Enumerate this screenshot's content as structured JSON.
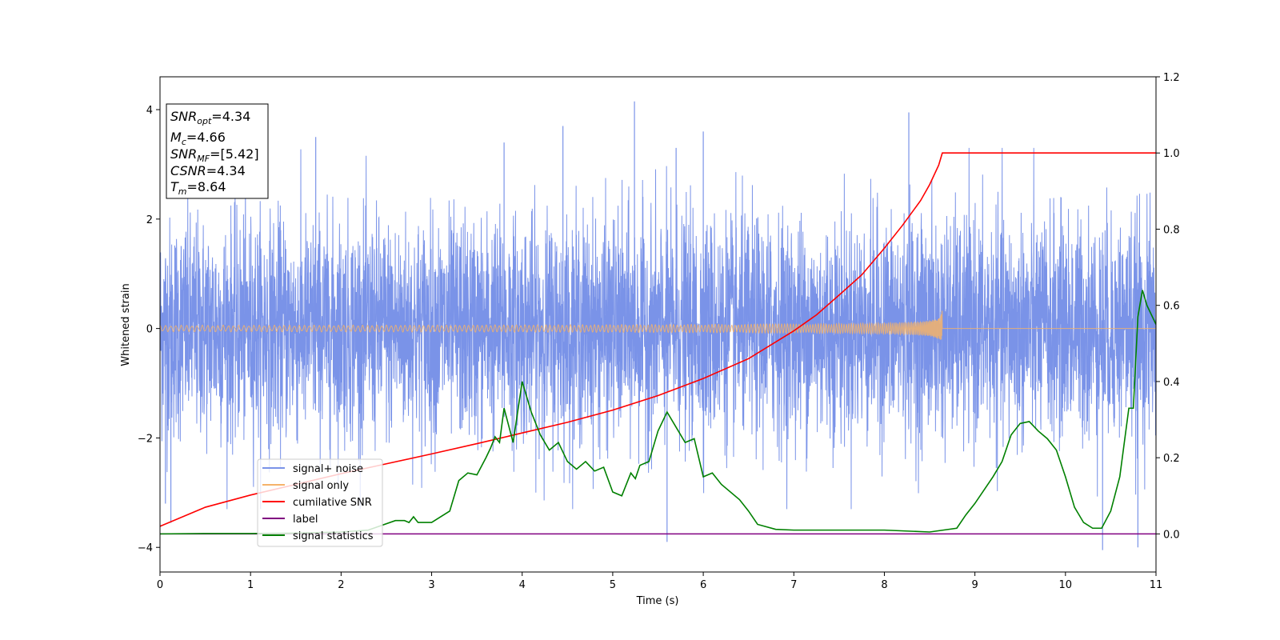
{
  "chart_data": {
    "type": "line",
    "title": "",
    "xlabel": "Time (s)",
    "ylabel": "Whitened strain",
    "xlim": [
      0,
      11
    ],
    "ylim_left": [
      -4.45,
      4.6
    ],
    "ylim_right": [
      -0.1,
      1.2
    ],
    "x_ticks": [
      "0",
      "1",
      "2",
      "3",
      "4",
      "5",
      "6",
      "7",
      "8",
      "9",
      "10",
      "11"
    ],
    "y_ticks_left": [
      "4",
      "2",
      "0",
      "−2",
      "−4"
    ],
    "y_ticks_right": [
      "1.2",
      "1.0",
      "0.8",
      "0.6",
      "0.4",
      "0.2",
      "0.0"
    ],
    "legend_location": "lower-left",
    "annotation": {
      "lines": [
        {
          "name": "SNR",
          "sub": "opt",
          "value": "=4.34"
        },
        {
          "name": "M",
          "sub": "c",
          "value": "=4.66"
        },
        {
          "name": "SNR",
          "sub": "MF",
          "value": "=[5.42]"
        },
        {
          "name": "CSNR",
          "sub": "",
          "value": "=4.34"
        },
        {
          "name": "T",
          "sub": "m",
          "value": "=8.64"
        }
      ]
    },
    "series": [
      {
        "name": "signal+ noise",
        "color": "#7a93e8",
        "axis": "left",
        "kind": "white-noise",
        "std": 1.0,
        "peak_values": [
          [
            0.06,
            -3.2
          ],
          [
            0.12,
            -3.55
          ],
          [
            1.72,
            3.5
          ],
          [
            3.8,
            3.4
          ],
          [
            4.45,
            3.7
          ],
          [
            5.24,
            4.15
          ],
          [
            5.6,
            -3.9
          ],
          [
            5.7,
            3.3
          ],
          [
            6.0,
            3.6
          ],
          [
            8.27,
            3.95
          ],
          [
            10.41,
            -4.05
          ],
          [
            10.8,
            -4.0
          ]
        ]
      },
      {
        "name": "signal only",
        "color": "#f5b36a",
        "axis": "left",
        "kind": "chirp",
        "tc": 8.64,
        "final_amplitude": 0.38
      },
      {
        "name": "cumilative SNR",
        "color": "#ff0000",
        "axis": "right",
        "x": [
          0,
          0.5,
          1,
          1.5,
          2,
          2.5,
          3,
          3.5,
          4,
          4.5,
          5,
          5.5,
          6,
          6.5,
          7,
          7.25,
          7.5,
          7.75,
          8,
          8.2,
          8.4,
          8.5,
          8.6,
          8.64,
          11
        ],
        "values": [
          0.02,
          0.07,
          0.102,
          0.13,
          0.158,
          0.184,
          0.21,
          0.237,
          0.265,
          0.293,
          0.325,
          0.363,
          0.408,
          0.46,
          0.533,
          0.575,
          0.627,
          0.68,
          0.75,
          0.81,
          0.875,
          0.917,
          0.968,
          1.0,
          1.0
        ]
      },
      {
        "name": "label",
        "color": "#800080",
        "axis": "right",
        "x": [
          0,
          11
        ],
        "values": [
          0.0,
          0.0
        ]
      },
      {
        "name": "signal statistics",
        "color": "#008000",
        "axis": "right",
        "x": [
          0,
          0.5,
          1,
          1.5,
          2,
          2.3,
          2.6,
          2.7,
          2.75,
          2.8,
          2.85,
          3,
          3.1,
          3.2,
          3.3,
          3.4,
          3.5,
          3.6,
          3.65,
          3.7,
          3.75,
          3.8,
          3.9,
          4,
          4.1,
          4.2,
          4.3,
          4.4,
          4.5,
          4.6,
          4.7,
          4.8,
          4.9,
          5,
          5.1,
          5.2,
          5.25,
          5.3,
          5.4,
          5.5,
          5.6,
          5.7,
          5.8,
          5.9,
          6,
          6.1,
          6.2,
          6.4,
          6.5,
          6.6,
          6.8,
          7,
          7.5,
          8,
          8.5,
          8.8,
          8.9,
          9,
          9.2,
          9.3,
          9.4,
          9.5,
          9.6,
          9.7,
          9.8,
          9.9,
          10,
          10.1,
          10.2,
          10.3,
          10.4,
          10.5,
          10.6,
          10.7,
          10.75,
          10.8,
          10.85,
          10.9,
          11
        ],
        "values": [
          0.0,
          0.001,
          0.001,
          0.002,
          0.005,
          0.01,
          0.035,
          0.035,
          0.03,
          0.045,
          0.03,
          0.03,
          0.045,
          0.06,
          0.14,
          0.16,
          0.155,
          0.2,
          0.225,
          0.255,
          0.24,
          0.33,
          0.24,
          0.4,
          0.32,
          0.26,
          0.22,
          0.24,
          0.19,
          0.17,
          0.19,
          0.165,
          0.175,
          0.11,
          0.1,
          0.16,
          0.145,
          0.18,
          0.19,
          0.27,
          0.32,
          0.28,
          0.24,
          0.25,
          0.15,
          0.16,
          0.13,
          0.09,
          0.06,
          0.025,
          0.012,
          0.01,
          0.01,
          0.01,
          0.005,
          0.015,
          0.05,
          0.08,
          0.15,
          0.19,
          0.26,
          0.29,
          0.295,
          0.27,
          0.25,
          0.22,
          0.15,
          0.07,
          0.03,
          0.015,
          0.015,
          0.06,
          0.15,
          0.33,
          0.33,
          0.57,
          0.64,
          0.6,
          0.55
        ]
      }
    ]
  }
}
